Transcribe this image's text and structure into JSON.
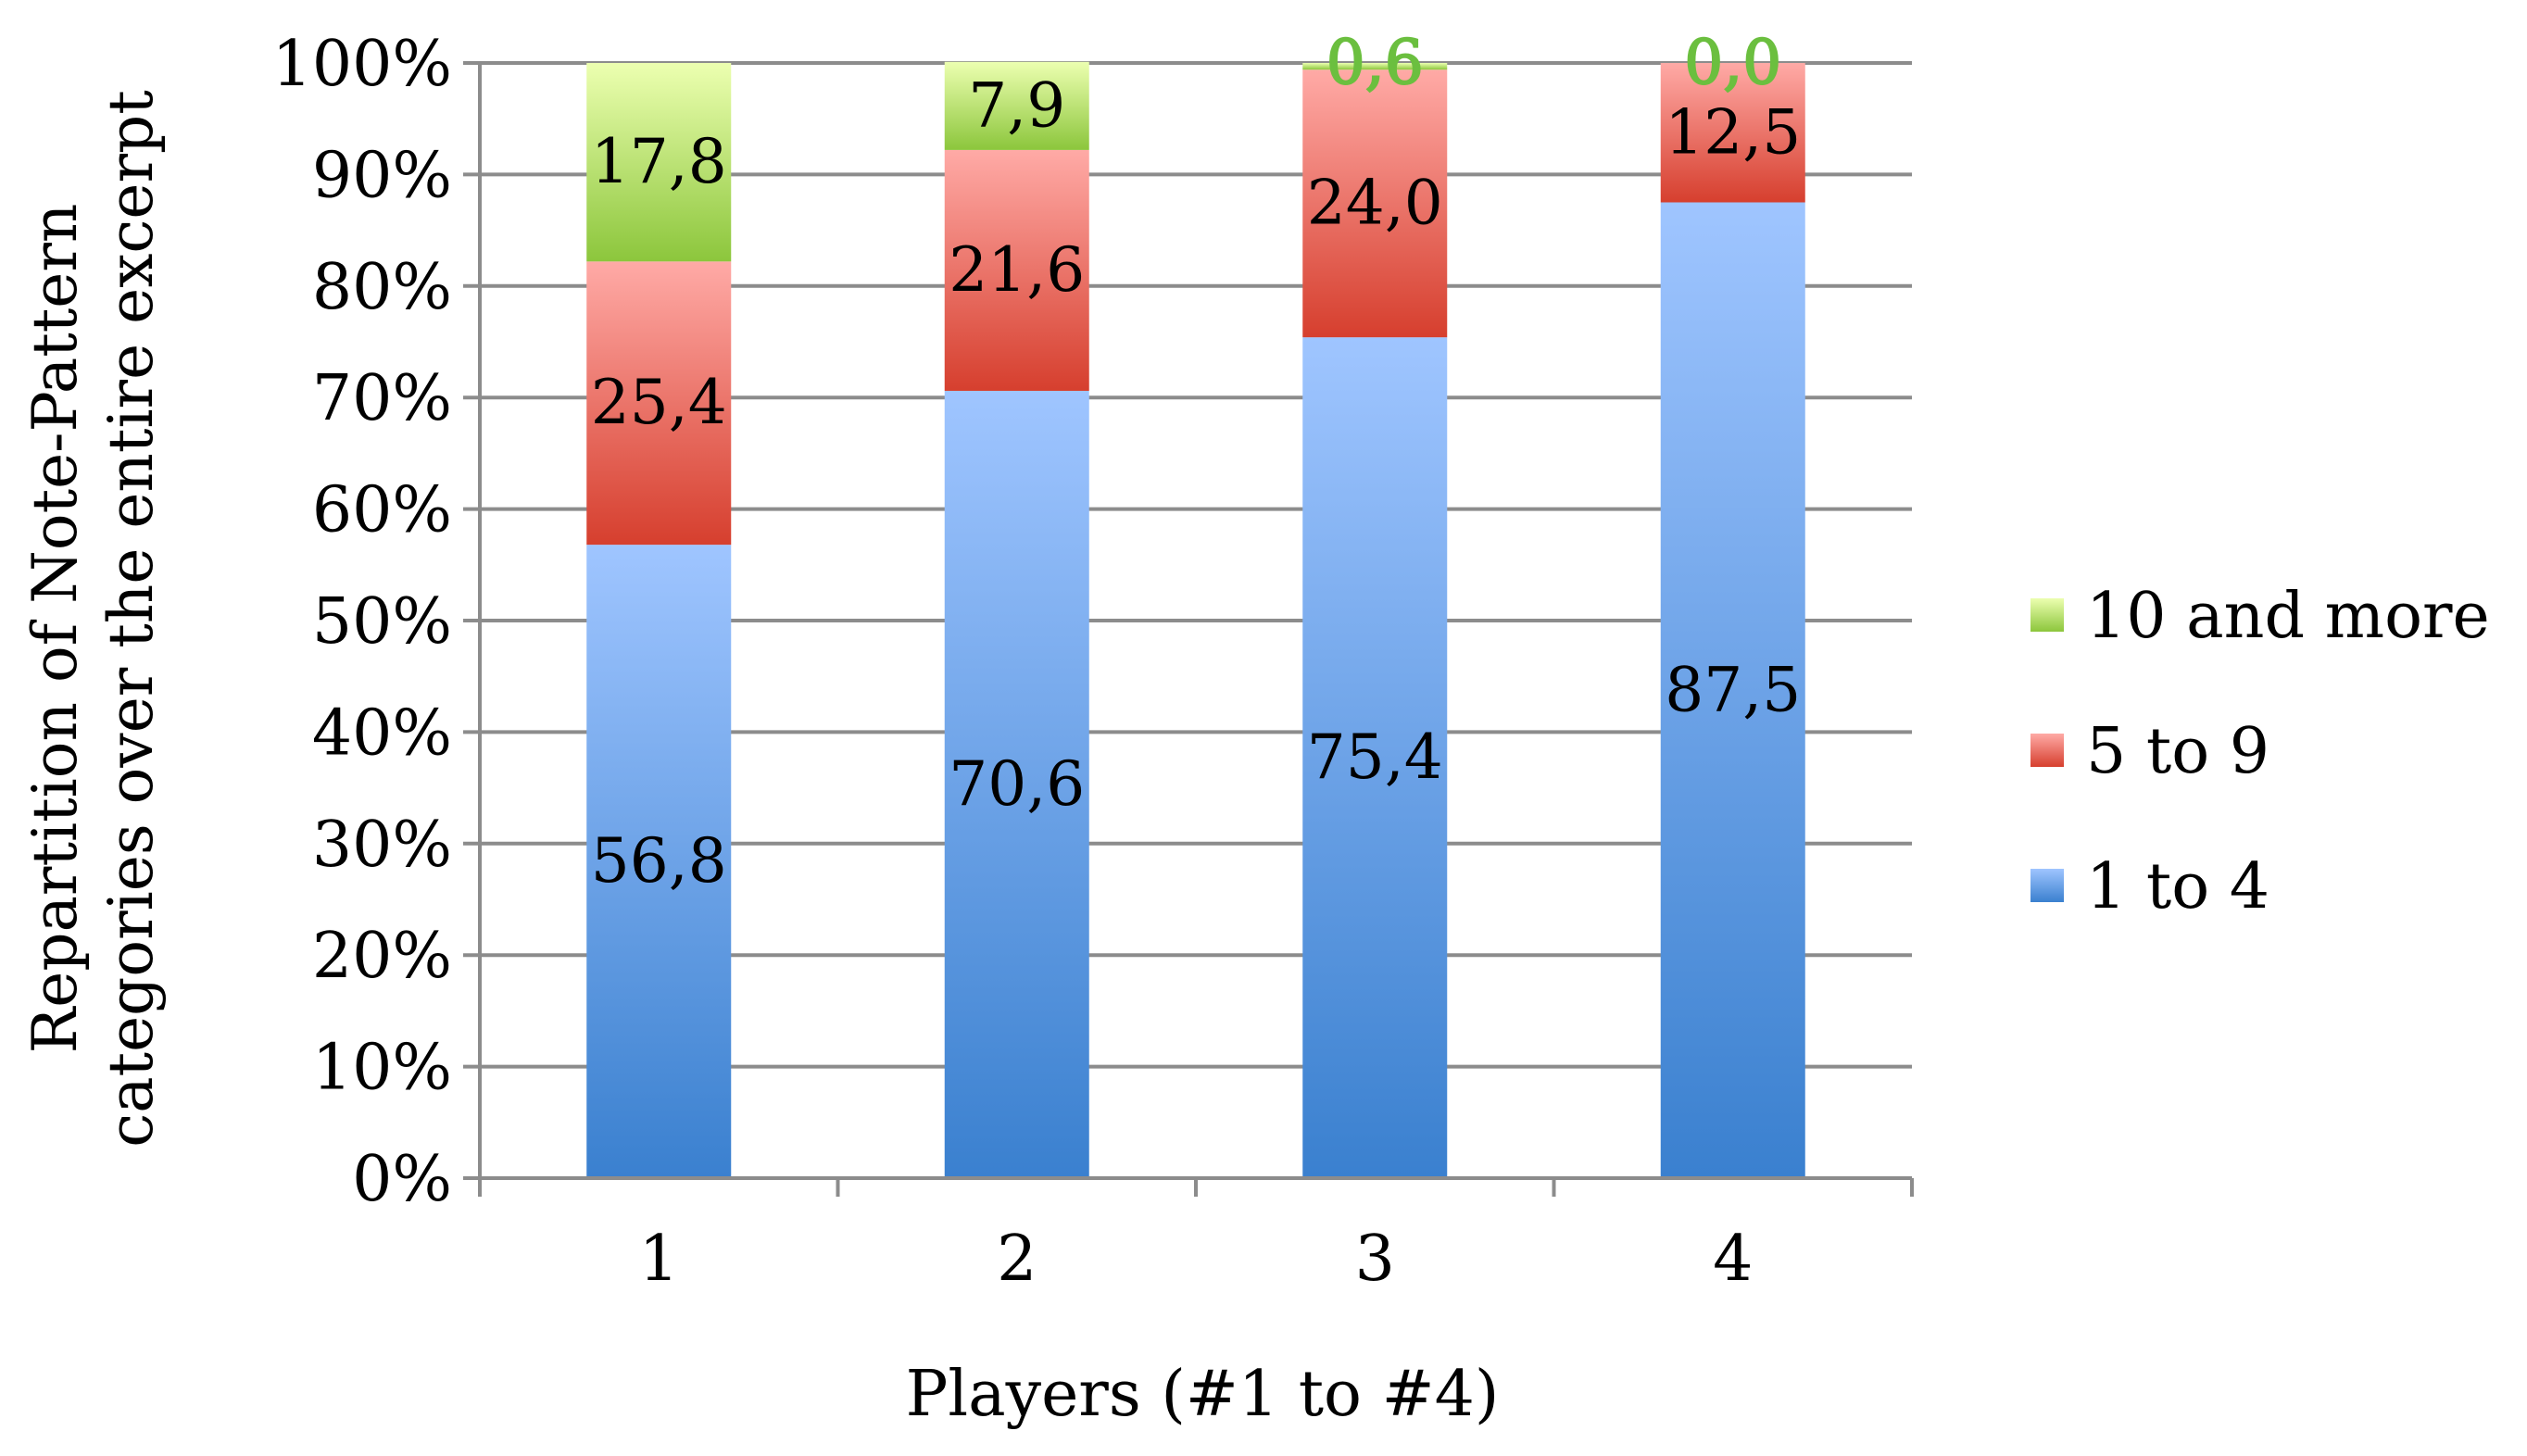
{
  "chart_data": {
    "type": "bar",
    "stacked": "percent",
    "categories": [
      "1",
      "2",
      "3",
      "4"
    ],
    "series": [
      {
        "name": "1 to 4",
        "values": [
          56.8,
          70.6,
          75.4,
          87.5
        ],
        "labels": [
          "56,8",
          "70,6",
          "75,4",
          "87,5"
        ],
        "color_top": "#9fc5ff",
        "color_bottom": "#3a80cf"
      },
      {
        "name": "5 to 9",
        "values": [
          25.4,
          21.6,
          24.0,
          12.5
        ],
        "labels": [
          "25,4",
          "21,6",
          "24,0",
          "12,5"
        ],
        "color_top": "#ffaaa6",
        "color_bottom": "#d63f2e"
      },
      {
        "name": "10 and more",
        "values": [
          17.8,
          7.9,
          0.6,
          0.0
        ],
        "labels": [
          "17,8",
          "7,9",
          "0,6",
          "0,0"
        ],
        "color_top": "#ecffb0",
        "color_bottom": "#8cc63c"
      }
    ],
    "legend_order": [
      "10 and more",
      "5 to 9",
      "1 to 4"
    ],
    "legend_position": "right",
    "yticks": [
      "0%",
      "10%",
      "20%",
      "30%",
      "40%",
      "50%",
      "60%",
      "70%",
      "80%",
      "90%",
      "100%"
    ],
    "ylim": [
      0,
      100
    ],
    "xlabel": "Players (#1 to #4)",
    "ylabel": [
      "Repartition of Note-Pattern",
      "categories over the entire excerpt"
    ],
    "grid": true,
    "gridline_color": "#8c8c8c",
    "axis_color": "#8c8c8c",
    "overflow_label_color": "#6bbf3f"
  }
}
